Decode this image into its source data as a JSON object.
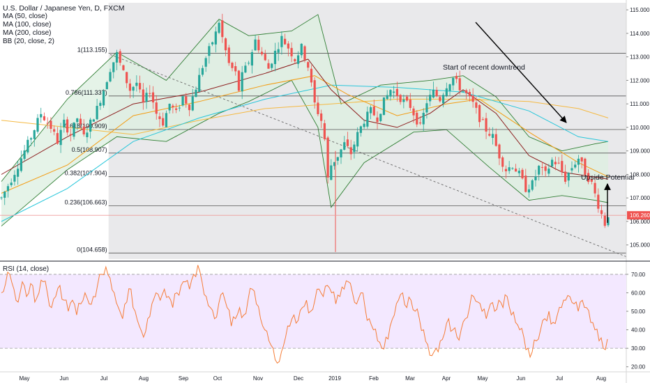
{
  "header": {
    "symbol_title": "U.S. Dollar / Japanese Yen, D, FXCM",
    "indicators": [
      "MA (50, close)",
      "MA (100, close)",
      "MA (200, close)",
      "BB (20, close, 2)"
    ],
    "rsi_label": "RSI (14, close)"
  },
  "chart_data": [
    {
      "type": "candlestick",
      "title": "U.S. Dollar / Japanese Yen, D, FXCM",
      "y_axis": {
        "ticks": [
          "115.000",
          "114.000",
          "113.000",
          "112.000",
          "111.000",
          "110.000",
          "109.000",
          "108.000",
          "107.000",
          "106.000",
          "105.000"
        ],
        "range": [
          104.4,
          115.3
        ],
        "position": "right"
      },
      "x_axis": {
        "ticks": [
          "May",
          "Jun",
          "Jul",
          "Aug",
          "Sep",
          "Oct",
          "Nov",
          "Dec",
          "2019",
          "Feb",
          "Mar",
          "Apr",
          "May",
          "Jun",
          "Jul",
          "Aug"
        ]
      },
      "last_price": "106.260",
      "last_price_color": "#ef5350",
      "fib_levels": [
        {
          "label": "1(113.155)",
          "value": 113.155
        },
        {
          "label": "0.786(111.337)",
          "value": 111.337
        },
        {
          "label": "0.618(109.909)",
          "value": 109.909
        },
        {
          "label": "0.5(108.907)",
          "value": 108.907
        },
        {
          "label": "0.382(107.904)",
          "value": 107.904
        },
        {
          "label": "0.236(106.663)",
          "value": 106.663
        },
        {
          "label": "0(104.658)",
          "value": 104.658
        }
      ],
      "annotations": [
        {
          "text": "Start of recent downtrend",
          "kind": "text"
        },
        {
          "text": "Upside Potential",
          "kind": "text"
        }
      ],
      "series_colors": {
        "up": "#26a69a",
        "down": "#ef5350",
        "ma50": "#8b1a1a",
        "ma100": "#f39c12",
        "ma200": "#26c6da",
        "bb": "#2e7d32",
        "bb_fill": "#e8f5e9"
      },
      "price_path": [
        [
          0,
          107.0
        ],
        [
          3,
          107.8
        ],
        [
          6,
          108.7
        ],
        [
          9,
          109.6
        ],
        [
          12,
          110.6
        ],
        [
          15,
          110.0
        ],
        [
          17,
          109.4
        ],
        [
          19,
          110.2
        ],
        [
          21,
          109.7
        ],
        [
          23,
          110.4
        ],
        [
          25,
          109.6
        ],
        [
          27,
          110.2
        ],
        [
          29,
          110.8
        ],
        [
          31,
          111.6
        ],
        [
          33,
          112.5
        ],
        [
          35,
          113.1
        ],
        [
          37,
          112.3
        ],
        [
          39,
          111.6
        ],
        [
          41,
          111.9
        ],
        [
          43,
          111.0
        ],
        [
          45,
          111.6
        ],
        [
          47,
          110.6
        ],
        [
          49,
          110.2
        ],
        [
          51,
          111.0
        ],
        [
          53,
          110.6
        ],
        [
          55,
          111.3
        ],
        [
          57,
          110.9
        ],
        [
          59,
          111.7
        ],
        [
          61,
          112.6
        ],
        [
          63,
          113.3
        ],
        [
          65,
          114.0
        ],
        [
          66,
          114.5
        ],
        [
          67,
          113.8
        ],
        [
          69,
          112.7
        ],
        [
          71,
          112.3
        ],
        [
          72,
          111.6
        ],
        [
          73,
          112.2
        ],
        [
          75,
          112.8
        ],
        [
          77,
          113.7
        ],
        [
          79,
          113.1
        ],
        [
          81,
          112.5
        ],
        [
          83,
          113.2
        ],
        [
          85,
          113.8
        ],
        [
          87,
          113.4
        ],
        [
          89,
          112.9
        ],
        [
          91,
          113.4
        ],
        [
          93,
          112.6
        ],
        [
          95,
          111.0
        ],
        [
          97,
          110.3
        ],
        [
          98,
          109.5
        ],
        [
          99,
          107.8
        ],
        [
          100,
          108.4
        ],
        [
          102,
          108.8
        ],
        [
          104,
          109.3
        ],
        [
          106,
          108.9
        ],
        [
          108,
          109.7
        ],
        [
          110,
          110.3
        ],
        [
          112,
          110.7
        ],
        [
          114,
          110.4
        ],
        [
          116,
          111.1
        ],
        [
          118,
          111.6
        ],
        [
          120,
          111.4
        ],
        [
          122,
          111.1
        ],
        [
          124,
          110.9
        ],
        [
          126,
          110.3
        ],
        [
          127,
          110.0
        ],
        [
          129,
          111.1
        ],
        [
          131,
          111.5
        ],
        [
          133,
          111.2
        ],
        [
          135,
          111.8
        ],
        [
          137,
          112.1
        ],
        [
          139,
          111.7
        ],
        [
          141,
          111.4
        ],
        [
          143,
          111.0
        ],
        [
          145,
          110.4
        ],
        [
          147,
          109.9
        ],
        [
          149,
          109.6
        ],
        [
          151,
          108.8
        ],
        [
          153,
          108.2
        ],
        [
          155,
          108.4
        ],
        [
          157,
          108.0
        ],
        [
          159,
          107.4
        ],
        [
          161,
          107.6
        ],
        [
          163,
          108.3
        ],
        [
          165,
          108.0
        ],
        [
          167,
          108.6
        ],
        [
          169,
          108.4
        ],
        [
          171,
          107.8
        ],
        [
          173,
          108.3
        ],
        [
          175,
          108.7
        ],
        [
          177,
          108.1
        ],
        [
          179,
          107.6
        ],
        [
          181,
          106.7
        ],
        [
          183,
          105.9
        ],
        [
          184,
          106.3
        ]
      ],
      "ma50_path": [
        [
          0,
          108.0
        ],
        [
          20,
          109.6
        ],
        [
          40,
          111.0
        ],
        [
          60,
          111.5
        ],
        [
          80,
          112.3
        ],
        [
          93,
          112.9
        ],
        [
          100,
          111.6
        ],
        [
          110,
          110.3
        ],
        [
          120,
          110.0
        ],
        [
          130,
          110.6
        ],
        [
          140,
          111.6
        ],
        [
          150,
          110.6
        ],
        [
          160,
          108.8
        ],
        [
          170,
          108.1
        ],
        [
          184,
          107.8
        ]
      ],
      "ma100_path": [
        [
          0,
          107.2
        ],
        [
          20,
          108.4
        ],
        [
          40,
          110.5
        ],
        [
          60,
          111.1
        ],
        [
          80,
          111.8
        ],
        [
          95,
          112.2
        ],
        [
          105,
          111.4
        ],
        [
          120,
          110.5
        ],
        [
          135,
          111.0
        ],
        [
          145,
          111.2
        ],
        [
          160,
          109.8
        ],
        [
          175,
          108.5
        ],
        [
          184,
          107.9
        ]
      ],
      "ma200_path": [
        [
          0,
          106.0
        ],
        [
          20,
          107.4
        ],
        [
          40,
          109.4
        ],
        [
          60,
          110.4
        ],
        [
          80,
          111.2
        ],
        [
          100,
          111.8
        ],
        [
          120,
          111.7
        ],
        [
          140,
          111.5
        ],
        [
          160,
          110.7
        ],
        [
          175,
          109.6
        ],
        [
          184,
          109.4
        ]
      ],
      "ma_flat_path": [
        [
          0,
          110.3
        ],
        [
          20,
          110.0
        ],
        [
          40,
          109.7
        ],
        [
          60,
          110.3
        ],
        [
          80,
          110.8
        ],
        [
          100,
          111.0
        ],
        [
          120,
          111.2
        ],
        [
          140,
          111.2
        ],
        [
          160,
          111.1
        ],
        [
          175,
          110.8
        ],
        [
          184,
          110.4
        ]
      ],
      "bb_upper": [
        [
          0,
          107.7
        ],
        [
          20,
          111.2
        ],
        [
          35,
          113.2
        ],
        [
          50,
          112.0
        ],
        [
          66,
          114.6
        ],
        [
          75,
          113.9
        ],
        [
          88,
          114.1
        ],
        [
          96,
          114.8
        ],
        [
          103,
          111.0
        ],
        [
          115,
          111.8
        ],
        [
          130,
          112.0
        ],
        [
          140,
          112.2
        ],
        [
          150,
          111.3
        ],
        [
          160,
          109.6
        ],
        [
          170,
          109.0
        ],
        [
          180,
          109.3
        ],
        [
          184,
          109.4
        ]
      ],
      "bb_lower": [
        [
          0,
          105.8
        ],
        [
          20,
          108.2
        ],
        [
          35,
          109.6
        ],
        [
          50,
          109.4
        ],
        [
          66,
          110.6
        ],
        [
          75,
          111.1
        ],
        [
          88,
          112.0
        ],
        [
          96,
          110.0
        ],
        [
          100,
          106.6
        ],
        [
          110,
          108.5
        ],
        [
          125,
          109.8
        ],
        [
          135,
          109.9
        ],
        [
          148,
          108.3
        ],
        [
          160,
          106.9
        ],
        [
          170,
          107.1
        ],
        [
          180,
          106.9
        ],
        [
          184,
          106.8
        ]
      ]
    },
    {
      "type": "line",
      "title": "RSI (14, close)",
      "y_axis": {
        "ticks": [
          "70.00",
          "60.00",
          "50.00",
          "40.00",
          "30.00",
          "20.00"
        ],
        "range": [
          18,
          76
        ]
      },
      "band": [
        30,
        70
      ],
      "last_value": 35,
      "series": [
        {
          "name": "RSI",
          "values": [
            60,
            65,
            70,
            62,
            55,
            66,
            58,
            65,
            55,
            60,
            66,
            60,
            52,
            58,
            64,
            56,
            50,
            56,
            48,
            54,
            60,
            54,
            58,
            64,
            70,
            74,
            68,
            60,
            52,
            46,
            55,
            62,
            50,
            42,
            36,
            46,
            54,
            60,
            56,
            62,
            58,
            52,
            60,
            64,
            66,
            62,
            70,
            75,
            66,
            58,
            52,
            46,
            54,
            60,
            52,
            42,
            46,
            52,
            48,
            56,
            62,
            54,
            46,
            40,
            34,
            30,
            22,
            28,
            36,
            42,
            48,
            45,
            52,
            56,
            50,
            56,
            62,
            58,
            64,
            60,
            54,
            58,
            62,
            66,
            60,
            54,
            60,
            52,
            46,
            40,
            34,
            30,
            36,
            42,
            48,
            56,
            60,
            52,
            56,
            50,
            46,
            40,
            32,
            26,
            30,
            34,
            38,
            46,
            40,
            36,
            40,
            46,
            52,
            58,
            55,
            50,
            46,
            54,
            50,
            56,
            52,
            58,
            48,
            44,
            40,
            36,
            30,
            28,
            34,
            40,
            46,
            50,
            44,
            48,
            52,
            56,
            58,
            54,
            50,
            56,
            52,
            44,
            40,
            34,
            30,
            35
          ]
        }
      ]
    }
  ]
}
